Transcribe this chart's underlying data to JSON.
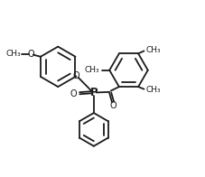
{
  "bg_color": "#ffffff",
  "line_color": "#1a1a1a",
  "line_width": 1.3,
  "font_size": 7.0,
  "fig_width": 2.27,
  "fig_height": 1.96,
  "dpi": 100,
  "xlim": [
    0,
    11
  ],
  "ylim": [
    0,
    10
  ]
}
